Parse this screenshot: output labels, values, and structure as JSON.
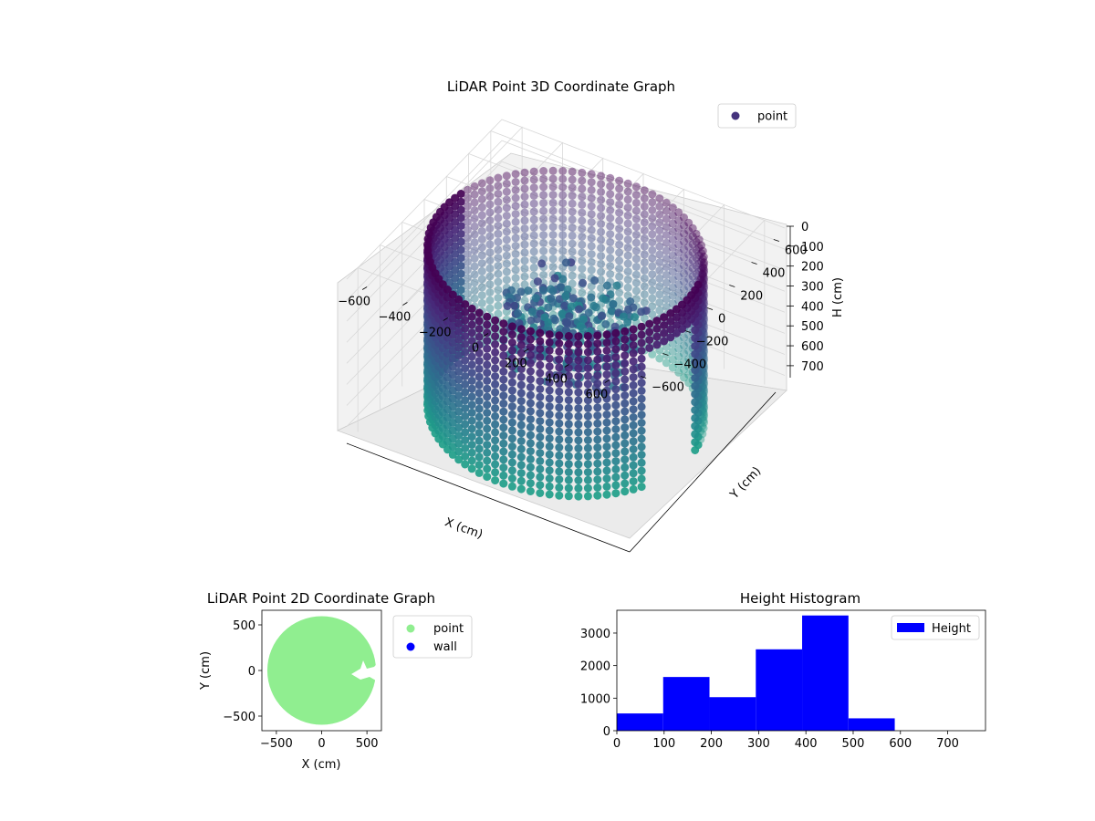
{
  "chart_data": [
    {
      "type": "scatter",
      "projection": "3d",
      "title": "LiDAR Point 3D Coordinate Graph",
      "xlabel": "X (cm)",
      "ylabel": "Y (cm)",
      "zlabel": "H (cm)",
      "xlim": [
        -700,
        700
      ],
      "ylim": [
        -700,
        700
      ],
      "zlim": [
        0,
        780
      ],
      "z_inverted": true,
      "xticks": [
        -600,
        -400,
        -200,
        0,
        200,
        400,
        600
      ],
      "yticks": [
        -600,
        -400,
        -200,
        0,
        200,
        400,
        600
      ],
      "zticks": [
        0,
        100,
        200,
        300,
        400,
        500,
        600,
        700
      ],
      "grid": true,
      "legend": {
        "entries": [
          "point"
        ],
        "placement": "top-right"
      },
      "colormap": "viridis",
      "series": [
        {
          "name": "point",
          "color": "#45337d",
          "wall": {
            "radius_cm": 600,
            "height_range_cm": [
              0,
              760
            ],
            "gap_angle_deg": [
              -25,
              5
            ]
          },
          "interior_cluster": {
            "x_range_cm": [
              -300,
              250
            ],
            "y_range_cm": [
              -100,
              300
            ],
            "height_range_cm": [
              250,
              600
            ]
          }
        }
      ]
    },
    {
      "type": "scatter",
      "title": "LiDAR Point 2D Coordinate Graph",
      "xlabel": "X (cm)",
      "ylabel": "Y (cm)",
      "xlim": [
        -660,
        660
      ],
      "ylim": [
        -660,
        660
      ],
      "xticks": [
        -500,
        0,
        500
      ],
      "yticks": [
        -500,
        0,
        500
      ],
      "legend": {
        "placement": "outside-right"
      },
      "series": [
        {
          "name": "point",
          "color": "#90ee90",
          "shape": "disk",
          "radius_cm": 600,
          "center_cm": [
            0,
            0
          ]
        },
        {
          "name": "wall",
          "color": "#0000ff"
        }
      ]
    },
    {
      "type": "bar",
      "subtype": "histogram",
      "title": "Height Histogram",
      "xlim": [
        0,
        780
      ],
      "ylim": [
        0,
        3700
      ],
      "xticks": [
        0,
        100,
        200,
        300,
        400,
        500,
        600,
        700
      ],
      "yticks": [
        0,
        1000,
        2000,
        3000
      ],
      "legend": {
        "entries": [
          "Height"
        ],
        "placement": "top-right"
      },
      "series": [
        {
          "name": "Height",
          "color": "#0000ff",
          "bins": [
            0,
            98,
            196,
            294,
            392,
            490,
            588,
            686,
            784
          ],
          "values": [
            530,
            1650,
            1030,
            2500,
            3540,
            380,
            0,
            0
          ]
        }
      ]
    }
  ]
}
